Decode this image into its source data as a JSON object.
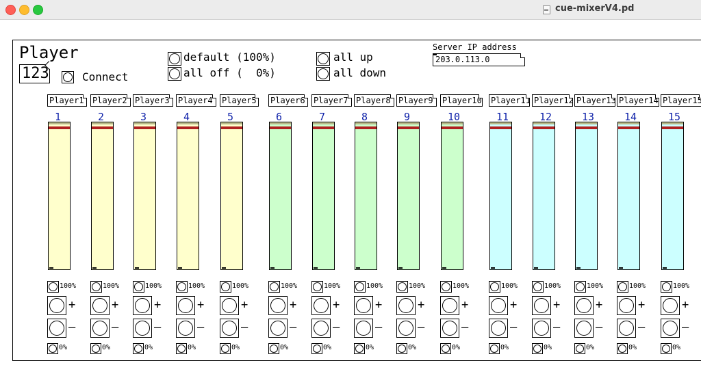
{
  "window": {
    "title": "cue-mixerV4.pd"
  },
  "header": {
    "heading": "Player",
    "player_number": "123",
    "connect_label": "Connect",
    "default_label": "default (100%)",
    "all_off_label": "all off (  0%)",
    "all_up_label": "all up",
    "all_down_label": "all down"
  },
  "server": {
    "label": "Server IP address",
    "ip": "203.0.113.0"
  },
  "channels": [
    {
      "name": "Player1",
      "number": "1",
      "level": 0.97,
      "group": "yellow"
    },
    {
      "name": "Player2",
      "number": "2",
      "level": 0.97,
      "group": "yellow"
    },
    {
      "name": "Player3",
      "number": "3",
      "level": 0.97,
      "group": "yellow"
    },
    {
      "name": "Player4",
      "number": "4",
      "level": 0.97,
      "group": "yellow"
    },
    {
      "name": "Player5",
      "number": "5",
      "level": 0.97,
      "group": "yellow"
    },
    {
      "name": "Player6",
      "number": "6",
      "level": 0.97,
      "group": "green"
    },
    {
      "name": "Player7",
      "number": "7",
      "level": 0.97,
      "group": "green"
    },
    {
      "name": "Player8",
      "number": "8",
      "level": 0.97,
      "group": "green"
    },
    {
      "name": "Player9",
      "number": "9",
      "level": 0.97,
      "group": "green"
    },
    {
      "name": "Player10",
      "number": "10",
      "level": 0.97,
      "group": "green"
    },
    {
      "name": "Player11",
      "number": "11",
      "level": 0.97,
      "group": "cyan"
    },
    {
      "name": "Player12",
      "number": "12",
      "level": 0.97,
      "group": "cyan"
    },
    {
      "name": "Player13",
      "number": "13",
      "level": 0.97,
      "group": "cyan"
    },
    {
      "name": "Player14",
      "number": "14",
      "level": 0.97,
      "group": "cyan"
    },
    {
      "name": "Player15",
      "number": "15",
      "level": 0.97,
      "group": "cyan"
    }
  ],
  "channel_controls": {
    "full_label": "100%",
    "up_label": "+",
    "down_label": "–",
    "zero_label": "0%"
  },
  "colors": {
    "yellow": "#ffffcc",
    "green": "#ccffcc",
    "cyan": "#ccffff",
    "knob": "#b02020",
    "number": "#0b1ea8"
  },
  "icons": {
    "bang": "circle-in-square-icon"
  }
}
